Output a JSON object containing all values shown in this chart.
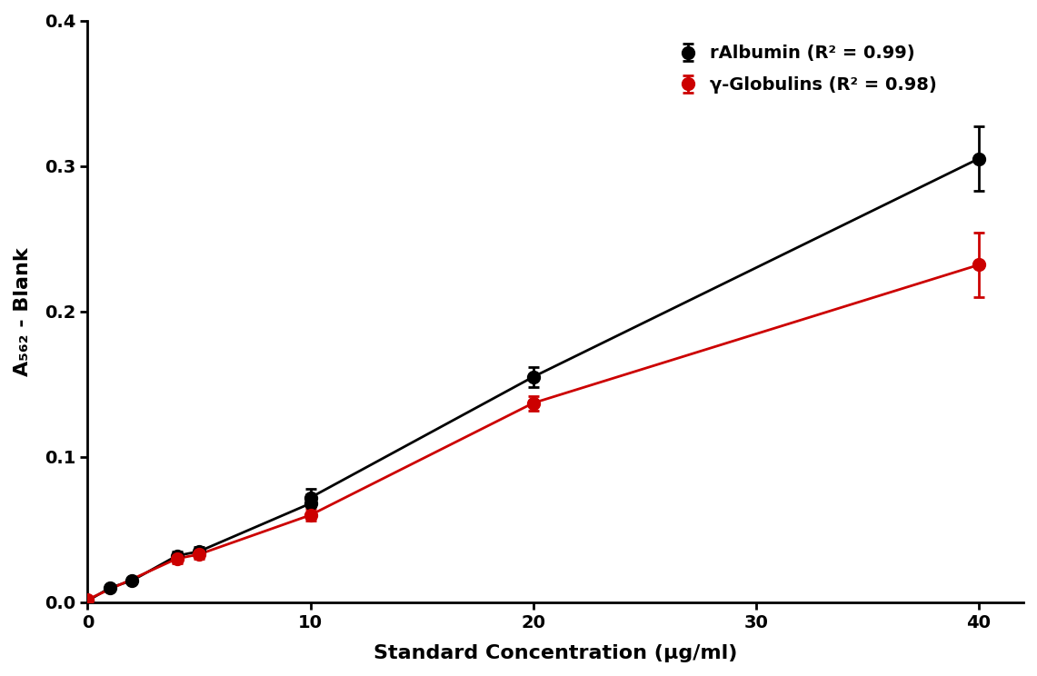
{
  "albumin_x": [
    0,
    1,
    2,
    4,
    5,
    10,
    10,
    20,
    40
  ],
  "albumin_y": [
    0.001,
    0.01,
    0.015,
    0.032,
    0.035,
    0.068,
    0.072,
    0.155,
    0.305
  ],
  "albumin_yerr": [
    0.001,
    0.002,
    0.002,
    0.003,
    0.003,
    0.006,
    0.006,
    0.007,
    0.022
  ],
  "globulin_x": [
    0,
    4,
    5,
    10,
    20,
    40
  ],
  "globulin_y": [
    0.002,
    0.03,
    0.033,
    0.06,
    0.137,
    0.232
  ],
  "globulin_yerr": [
    0.001,
    0.003,
    0.003,
    0.004,
    0.005,
    0.022
  ],
  "albumin_color": "#000000",
  "globulin_color": "#cc0000",
  "albumin_label": "rAlbumin (R² = 0.99)",
  "globulin_label": "γ-Globulins (R² = 0.98)",
  "xlabel": "Standard Concentration (μg/ml)",
  "ylabel": "A₅₆₂ - Blank",
  "xlim": [
    0,
    42
  ],
  "ylim": [
    0,
    0.4
  ],
  "xticks": [
    0,
    10,
    20,
    30,
    40
  ],
  "yticks": [
    0.0,
    0.1,
    0.2,
    0.3,
    0.4
  ],
  "marker_size": 10,
  "line_width": 2,
  "capsize": 4,
  "background_color": "#ffffff"
}
